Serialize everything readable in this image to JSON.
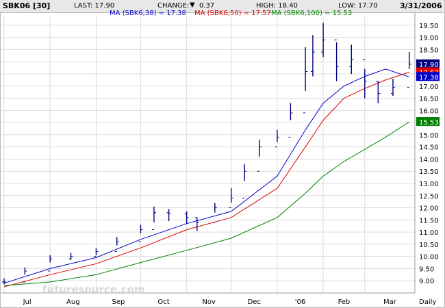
{
  "header": {
    "symbol": "SBK06 [30]",
    "last": "LAST: 17.90",
    "change_label": "CHANGE:",
    "change_value": "0.37",
    "high": "HIGH: 18.40",
    "low": "LOW: 17.70",
    "date": "3/31/2006"
  },
  "legend": {
    "ma38": "MA (SBK6,38) = 17.38",
    "ma50": "MA (SBK6,50) = 17.57",
    "ma100": "MA (SBK6,100) = 15.53"
  },
  "watermark": "futuresource.com",
  "colors": {
    "candles": "#000080",
    "ma38": "#0000cc",
    "ma50": "#dd0000",
    "ma100": "#008000",
    "grid": "#dcdcdc",
    "header_bg": "#e8e8e8"
  },
  "chart_data": {
    "type": "line",
    "title": "SBK06 [30]",
    "xlabel": "Daily",
    "x_tick_labels": [
      "Jul",
      "Aug",
      "Sep",
      "Oct",
      "Nov",
      "Dec",
      "'06",
      "Feb",
      "Mar",
      "Daily"
    ],
    "y_tick_labels": [
      "9.00",
      "9.50",
      "10.00",
      "10.50",
      "11.00",
      "11.50",
      "12.00",
      "12.50",
      "13.00",
      "13.50",
      "14.00",
      "14.50",
      "15.00",
      "15.50",
      "16.00",
      "16.50",
      "17.00",
      "17.50",
      "18.00",
      "18.50",
      "19.00",
      "19.50"
    ],
    "ylim": [
      8.5,
      19.75
    ],
    "price_tags": [
      {
        "label": "17.90",
        "value": 17.9,
        "color": "#000080"
      },
      {
        "label": "17.57",
        "value": 17.57,
        "color": "#dd0000"
      },
      {
        "label": "17.38",
        "value": 17.38,
        "color": "#0000cc"
      },
      {
        "label": "15.53",
        "value": 15.53,
        "color": "#008000"
      }
    ],
    "series": [
      {
        "name": "SBK06 [30]",
        "style": "ohlc",
        "color": "#000080",
        "x": [
          "Jul 01",
          "Jul 15",
          "Aug 01",
          "Aug 15",
          "Sep 01",
          "Sep 15",
          "Oct 01",
          "Oct 10",
          "Oct 20",
          "Nov 01",
          "Nov 08",
          "Nov 20",
          "Dec 01",
          "Dec 10",
          "Dec 20",
          "Jan 01",
          "Jan 10",
          "Jan 20",
          "Jan 25",
          "Feb 01",
          "Feb 10",
          "Feb 20",
          "Mar 01",
          "Mar 10",
          "Mar 20",
          "Mar 31"
        ],
        "close": [
          8.95,
          9.4,
          9.9,
          10.0,
          10.2,
          10.6,
          11.1,
          11.8,
          11.75,
          11.6,
          11.4,
          12.0,
          12.4,
          13.5,
          14.5,
          14.9,
          15.9,
          17.6,
          18.4,
          18.9,
          17.8,
          18.1,
          17.2,
          16.7,
          16.95,
          17.9
        ],
        "high": [
          9.1,
          9.55,
          10.05,
          10.15,
          10.35,
          10.8,
          11.3,
          12.05,
          11.95,
          11.85,
          11.6,
          12.2,
          12.8,
          13.8,
          14.8,
          15.2,
          16.3,
          18.6,
          19.1,
          19.6,
          18.8,
          18.7,
          17.7,
          17.2,
          17.3,
          18.4
        ],
        "low": [
          8.85,
          9.25,
          9.75,
          9.85,
          10.05,
          10.45,
          10.95,
          11.4,
          11.45,
          11.35,
          11.05,
          11.8,
          12.2,
          13.1,
          14.1,
          14.7,
          15.6,
          16.8,
          17.4,
          18.2,
          17.2,
          17.5,
          16.5,
          16.3,
          16.6,
          17.7
        ]
      },
      {
        "name": "MA (SBK6,38)",
        "color": "#0000cc",
        "x": [
          "Jul 01",
          "Aug 01",
          "Sep 01",
          "Oct 01",
          "Nov 01",
          "Dec 01",
          "Jan 01",
          "Jan 20",
          "Feb 01",
          "Feb 15",
          "Mar 01",
          "Mar 15",
          "Mar 31"
        ],
        "y": [
          8.9,
          9.5,
          9.95,
          10.7,
          11.35,
          11.85,
          13.3,
          15.2,
          16.3,
          17.0,
          17.4,
          17.7,
          17.38
        ]
      },
      {
        "name": "MA (SBK6,50)",
        "color": "#dd0000",
        "x": [
          "Jul 01",
          "Aug 01",
          "Sep 01",
          "Oct 01",
          "Nov 01",
          "Dec 01",
          "Jan 01",
          "Jan 20",
          "Feb 01",
          "Feb 15",
          "Mar 01",
          "Mar 15",
          "Mar 31"
        ],
        "y": [
          8.75,
          9.25,
          9.7,
          10.35,
          11.1,
          11.6,
          12.8,
          14.5,
          15.6,
          16.5,
          16.9,
          17.25,
          17.57
        ]
      },
      {
        "name": "MA (SBK6,100)",
        "color": "#008000",
        "x": [
          "Jul 01",
          "Aug 01",
          "Sep 01",
          "Oct 01",
          "Nov 01",
          "Dec 01",
          "Jan 01",
          "Jan 20",
          "Feb 01",
          "Feb 15",
          "Mar 01",
          "Mar 15",
          "Mar 31"
        ],
        "y": [
          8.8,
          8.95,
          9.25,
          9.75,
          10.25,
          10.75,
          11.6,
          12.6,
          13.3,
          13.9,
          14.4,
          14.9,
          15.53
        ]
      }
    ]
  }
}
